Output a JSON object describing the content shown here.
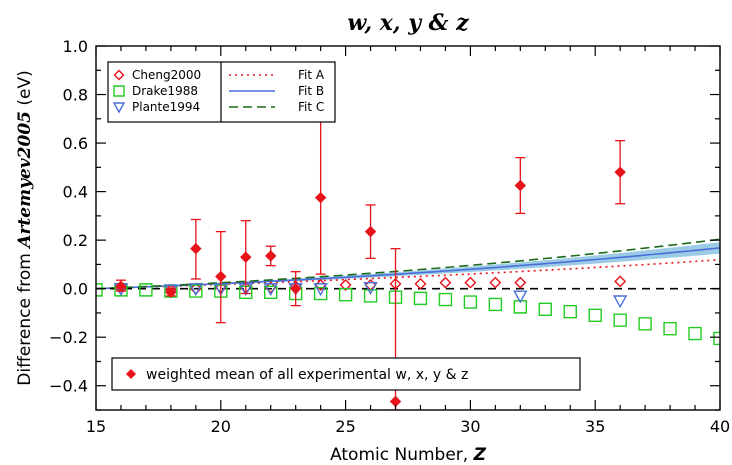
{
  "chart_data": {
    "type": "scatter",
    "title": "w, x, y & z",
    "xlabel_prefix": "Atomic Number,",
    "xlabel_var": "Z",
    "ylabel_prefix": "Difference from",
    "ylabel_emph": "Artemyev2005",
    "ylabel_suffix": "(eV)",
    "xlim": [
      15,
      40
    ],
    "ylim": [
      -0.5,
      1.0
    ],
    "xticks": [
      15,
      20,
      25,
      30,
      35,
      40
    ],
    "yticks": [
      -0.4,
      -0.2,
      0.0,
      0.2,
      0.4,
      0.6,
      0.8,
      1.0
    ],
    "xtick_labels": [
      "15",
      "20",
      "25",
      "30",
      "35",
      "40"
    ],
    "ytick_labels": [
      "−0.4",
      "−0.2",
      "0.0",
      "0.2",
      "0.4",
      "0.6",
      "0.8",
      "1.0"
    ],
    "grid": false,
    "colors": {
      "cheng": "#e8121a",
      "drake": "#22cc22",
      "plante": "#4a6fd8",
      "fitA": "#e8121a",
      "fitB": "#4a6fd8",
      "fitC": "#1b6b1b",
      "band": "#9ccbe6",
      "mean": "#e8121a"
    },
    "series": [
      {
        "name": "Cheng2000",
        "marker": "diamond-open",
        "points": [
          [
            16,
            0.0
          ],
          [
            18,
            -0.005
          ],
          [
            19,
            0.0
          ],
          [
            20,
            0.005
          ],
          [
            21,
            0.005
          ],
          [
            22,
            0.005
          ],
          [
            23,
            0.01
          ],
          [
            24,
            0.015
          ],
          [
            25,
            0.015
          ],
          [
            26,
            0.015
          ],
          [
            27,
            0.02
          ],
          [
            28,
            0.02
          ],
          [
            29,
            0.025
          ],
          [
            30,
            0.025
          ],
          [
            31,
            0.025
          ],
          [
            32,
            0.025
          ],
          [
            36,
            0.03
          ]
        ]
      },
      {
        "name": "Drake1988",
        "marker": "square-open",
        "points": [
          [
            15,
            -0.005
          ],
          [
            16,
            -0.005
          ],
          [
            17,
            -0.005
          ],
          [
            18,
            -0.01
          ],
          [
            19,
            -0.01
          ],
          [
            20,
            -0.01
          ],
          [
            21,
            -0.015
          ],
          [
            22,
            -0.015
          ],
          [
            23,
            -0.02
          ],
          [
            24,
            -0.02
          ],
          [
            25,
            -0.025
          ],
          [
            26,
            -0.03
          ],
          [
            27,
            -0.035
          ],
          [
            28,
            -0.04
          ],
          [
            29,
            -0.045
          ],
          [
            30,
            -0.055
          ],
          [
            31,
            -0.065
          ],
          [
            32,
            -0.075
          ],
          [
            33,
            -0.085
          ],
          [
            34,
            -0.095
          ],
          [
            35,
            -0.11
          ],
          [
            36,
            -0.13
          ],
          [
            37,
            -0.145
          ],
          [
            38,
            -0.165
          ],
          [
            39,
            -0.185
          ],
          [
            40,
            -0.205
          ]
        ]
      },
      {
        "name": "Plante1994",
        "marker": "triangle-down-open",
        "points": [
          [
            16,
            0.0
          ],
          [
            18,
            -0.005
          ],
          [
            19,
            0.0
          ],
          [
            20,
            0.0
          ],
          [
            21,
            0.0
          ],
          [
            22,
            0.0
          ],
          [
            23,
            0.0
          ],
          [
            24,
            0.0
          ],
          [
            26,
            0.005
          ],
          [
            32,
            -0.03
          ],
          [
            36,
            -0.05
          ]
        ]
      },
      {
        "name": "weighted mean of all experimental w, x, y & z",
        "marker": "diamond-filled",
        "points": [
          {
            "x": 16,
            "y": 0.01,
            "lo": -0.01,
            "hi": 0.035
          },
          {
            "x": 18,
            "y": -0.015,
            "lo": -0.03,
            "hi": 0.0
          },
          {
            "x": 19,
            "y": 0.165,
            "lo": 0.04,
            "hi": 0.285
          },
          {
            "x": 20,
            "y": 0.05,
            "lo": -0.14,
            "hi": 0.235
          },
          {
            "x": 21,
            "y": 0.13,
            "lo": -0.02,
            "hi": 0.28
          },
          {
            "x": 22,
            "y": 0.135,
            "lo": 0.095,
            "hi": 0.175
          },
          {
            "x": 23,
            "y": 0.0,
            "lo": -0.07,
            "hi": 0.07
          },
          {
            "x": 24,
            "y": 0.375,
            "lo": 0.06,
            "hi": 0.69
          },
          {
            "x": 26,
            "y": 0.235,
            "lo": 0.125,
            "hi": 0.345
          },
          {
            "x": 27,
            "y": -0.465,
            "lo": -0.5,
            "hi": 0.165
          },
          {
            "x": 32,
            "y": 0.425,
            "lo": 0.31,
            "hi": 0.54
          },
          {
            "x": 36,
            "y": 0.48,
            "lo": 0.35,
            "hi": 0.61
          }
        ]
      }
    ],
    "fits": [
      {
        "name": "Fit A",
        "style": "dotted",
        "a": 0.0033,
        "b": 3.33e-05,
        "c": 1e-06
      },
      {
        "name": "Fit B",
        "style": "solid",
        "a": 0.0036,
        "b": 0.0001,
        "c": 1e-06
      },
      {
        "name": "Fit C",
        "style": "dashed",
        "a": 0.0042,
        "b": 0.00013,
        "c": 1.1e-06
      }
    ],
    "band": {
      "lower_scale": 0.86,
      "upper_scale": 1.14
    },
    "legend": {
      "placement": "top-left",
      "marker_entries": [
        "Cheng2000",
        "Drake1988",
        "Plante1994"
      ],
      "line_entries": [
        "Fit A",
        "Fit B",
        "Fit C"
      ],
      "bottom_entry": "weighted mean of all experimental w, x, y & z"
    }
  }
}
